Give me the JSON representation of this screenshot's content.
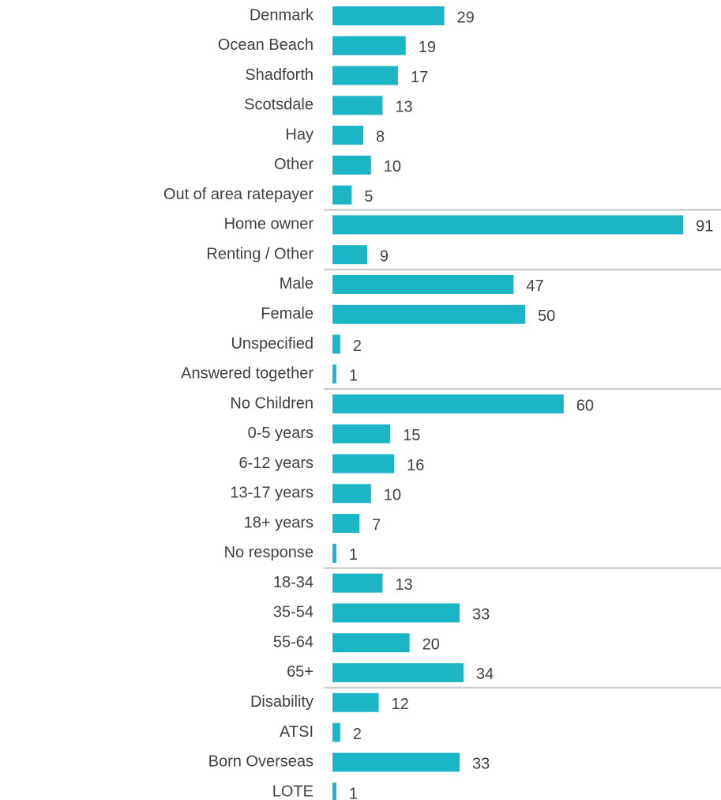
{
  "chart_data": [
    {
      "type": "bar",
      "color": "#1bb5c5",
      "categories": [
        "Denmark",
        "Ocean Beach",
        "Shadforth",
        "Scotsdale",
        "Hay",
        "Other",
        "Out of area ratepayer"
      ],
      "values": [
        29,
        19,
        17,
        13,
        8,
        10,
        5
      ]
    },
    {
      "type": "bar",
      "color": "#1bb5c5",
      "categories": [
        "Home owner",
        "Renting / Other"
      ],
      "values": [
        91,
        9
      ]
    },
    {
      "type": "bar",
      "color": "#1bb5c5",
      "categories": [
        "Male",
        "Female",
        "Unspecified",
        "Answered together"
      ],
      "values": [
        47,
        50,
        2,
        1
      ]
    },
    {
      "type": "bar",
      "color": "#1bb5c5",
      "categories": [
        "No Children",
        "0-5 years",
        "6-12 years",
        "13-17 years",
        "18+ years",
        "No response"
      ],
      "values": [
        60,
        15,
        16,
        10,
        7,
        1
      ]
    },
    {
      "type": "bar",
      "color": "#1bb5c5",
      "categories": [
        "18-34",
        "35-54",
        "55-64",
        "65+"
      ],
      "values": [
        13,
        33,
        20,
        34
      ]
    },
    {
      "type": "bar",
      "color": "#1bb5c5",
      "categories": [
        "Disability",
        "ATSI",
        "Born Overseas",
        "LOTE"
      ],
      "values": [
        12,
        2,
        33,
        1
      ]
    }
  ]
}
